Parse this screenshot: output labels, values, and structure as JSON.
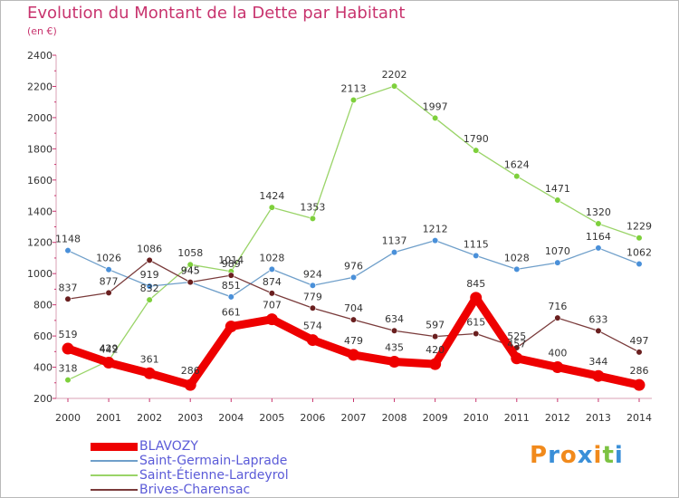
{
  "chart_data": {
    "type": "line",
    "title": "Evolution du Montant de la Dette par Habitant",
    "subtitle": "(en €)",
    "xlabel": "",
    "ylabel": "",
    "ylim": [
      200,
      2400
    ],
    "ytick_step": 200,
    "grid": false,
    "legend_position": "bottom-left",
    "x": [
      "2000",
      "2001",
      "2002",
      "2003",
      "2004",
      "2005",
      "2006",
      "2007",
      "2008",
      "2009",
      "2010",
      "2011",
      "2012",
      "2013",
      "2014"
    ],
    "series": [
      {
        "name": "Saint-Étienne-Lardeyrol",
        "color": "#9ad468",
        "marker": "#7ed03c",
        "values": [
          318,
          442,
          832,
          1058,
          1014,
          1424,
          1353,
          2113,
          2202,
          1997,
          1790,
          1624,
          1471,
          1320,
          1229
        ]
      },
      {
        "name": "Saint-Germain-Laprade",
        "color": "#6f9fca",
        "marker": "#4a90d9",
        "values": [
          1148,
          1026,
          919,
          945,
          851,
          1028,
          924,
          976,
          1137,
          1212,
          1115,
          1028,
          1070,
          1164,
          1062
        ]
      },
      {
        "name": "Brives-Charensac",
        "color": "#7a3b3b",
        "marker": "#6a1f1f",
        "values": [
          837,
          877,
          1086,
          945,
          989,
          874,
          779,
          704,
          634,
          597,
          615,
          525,
          716,
          633,
          497
        ]
      },
      {
        "name": "BLAVOZY",
        "color": "#ee0000",
        "marker": "#ee0000",
        "values": [
          519,
          429,
          361,
          286,
          661,
          707,
          574,
          479,
          435,
          420,
          845,
          457,
          400,
          344,
          286
        ]
      }
    ]
  },
  "legend": {
    "items": [
      {
        "label": "BLAVOZY",
        "color": "#ee0000",
        "thick": true
      },
      {
        "label": "Saint-Germain-Laprade",
        "color": "#6f9fca",
        "thick": false
      },
      {
        "label": "Saint-Étienne-Lardeyrol",
        "color": "#9ad468",
        "thick": false
      },
      {
        "label": "Brives-Charensac",
        "color": "#7a3b3b",
        "thick": false
      }
    ]
  },
  "logo": {
    "text": "Proxiti",
    "letters": [
      {
        "ch": "P",
        "color": "#f18a1c"
      },
      {
        "ch": "r",
        "color": "#3a8fd8"
      },
      {
        "ch": "o",
        "color": "#f18a1c"
      },
      {
        "ch": "x",
        "color": "#3a8fd8"
      },
      {
        "ch": "i",
        "color": "#f18a1c"
      },
      {
        "ch": "t",
        "color": "#7cc242"
      },
      {
        "ch": "i",
        "color": "#3a8fd8"
      }
    ]
  }
}
